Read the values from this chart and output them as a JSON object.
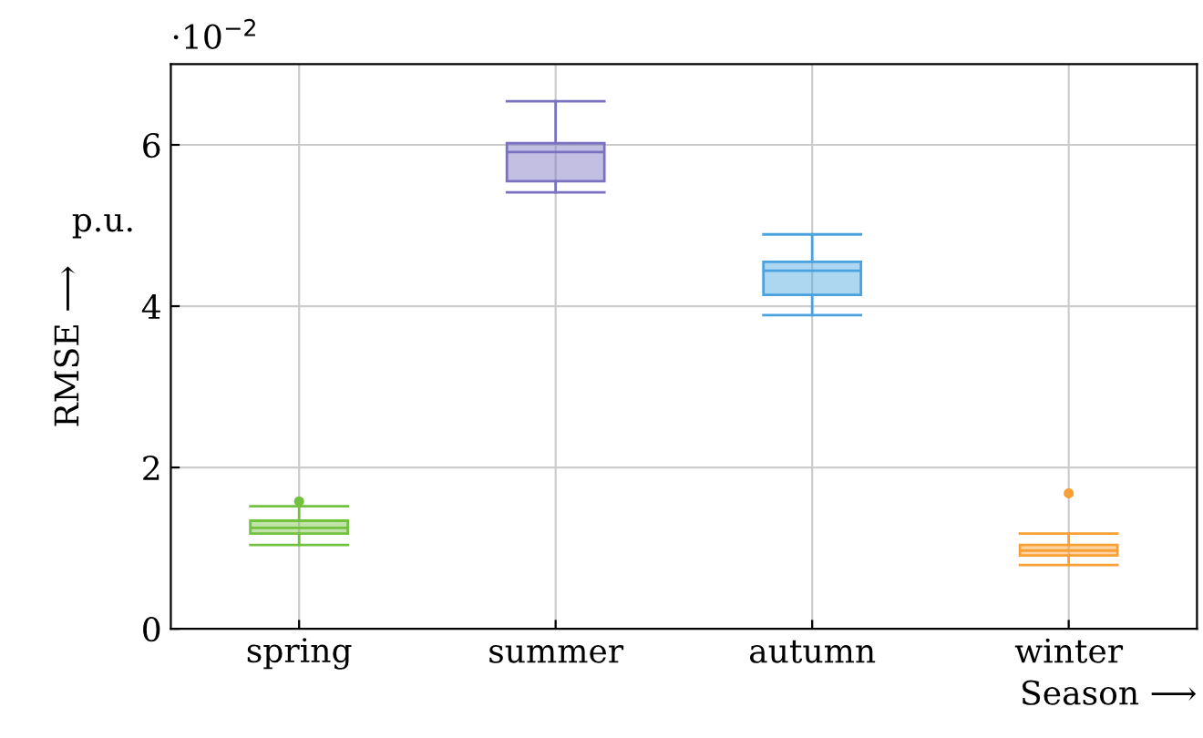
{
  "chart_data": {
    "type": "box",
    "categories": [
      "spring",
      "summer",
      "autumn",
      "winter"
    ],
    "boxes": [
      {
        "low": 1.04,
        "q1": 1.18,
        "median": 1.25,
        "q3": 1.34,
        "high": 1.52,
        "outliers": [
          1.58
        ]
      },
      {
        "low": 5.41,
        "q1": 5.55,
        "median": 5.91,
        "q3": 6.02,
        "high": 6.54
      },
      {
        "low": 3.89,
        "q1": 4.14,
        "median": 4.44,
        "q3": 4.55,
        "high": 4.89
      },
      {
        "low": 0.79,
        "q1": 0.91,
        "median": 0.97,
        "q3": 1.04,
        "high": 1.18,
        "outliers": [
          1.68
        ]
      }
    ],
    "colors": [
      "#72c13f",
      "#7a72c0",
      "#4aa3df",
      "#f8a035"
    ],
    "ylim": [
      0,
      7
    ],
    "yticks": [
      0,
      2,
      4,
      6
    ],
    "xlabel": "Season ⟶",
    "ylabel": "RMSE ⟶",
    "annotations": [
      "·10$^{−2}$",
      "p.u."
    ],
    "grid": true
  }
}
